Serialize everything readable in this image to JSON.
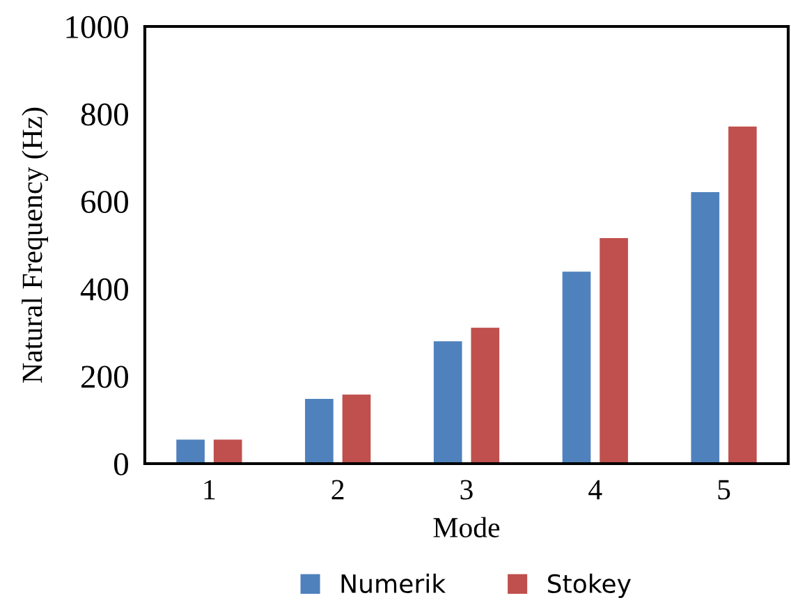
{
  "chart_data": {
    "type": "bar",
    "xlabel": "Mode",
    "ylabel": "Natural Frequency (Hz)",
    "categories": [
      "1",
      "2",
      "3",
      "4",
      "5"
    ],
    "series": [
      {
        "name": "Numerik",
        "color": "#4f81bd",
        "values": [
          55,
          148,
          280,
          439,
          621
        ]
      },
      {
        "name": "Stokey",
        "color": "#c0504d",
        "values": [
          55,
          158,
          311,
          516,
          771
        ]
      }
    ],
    "ylim": [
      0,
      1000
    ],
    "yticks": [
      0,
      200,
      400,
      600,
      800,
      1000
    ],
    "grid": false,
    "legend": "bottom"
  }
}
